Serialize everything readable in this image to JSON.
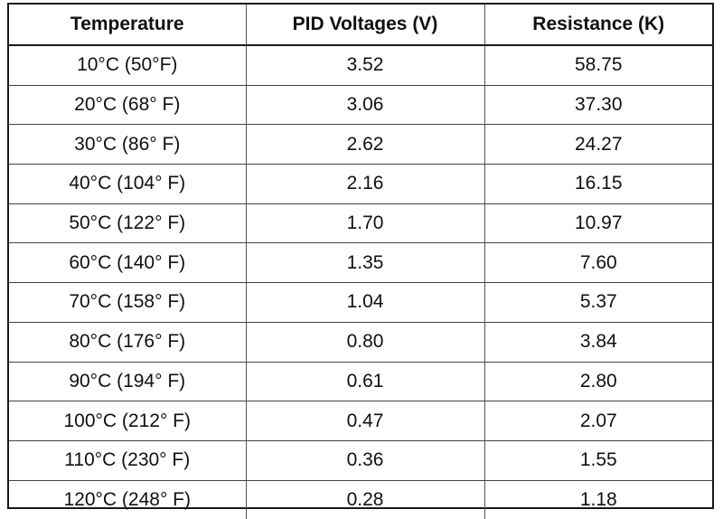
{
  "table": {
    "headers": [
      "Temperature",
      "PID Voltages (V)",
      "Resistance (K)"
    ],
    "rows": [
      [
        "10°C (50°F)",
        "3.52",
        "58.75"
      ],
      [
        "20°C (68° F)",
        "3.06",
        "37.30"
      ],
      [
        "30°C (86° F)",
        "2.62",
        "24.27"
      ],
      [
        "40°C (104° F)",
        "2.16",
        "16.15"
      ],
      [
        "50°C (122° F)",
        "1.70",
        "10.97"
      ],
      [
        "60°C (140° F)",
        "1.35",
        "7.60"
      ],
      [
        "70°C (158° F)",
        "1.04",
        "5.37"
      ],
      [
        "80°C (176° F)",
        "0.80",
        "3.84"
      ],
      [
        "90°C (194° F)",
        "0.61",
        "2.80"
      ],
      [
        "100°C (212° F)",
        "0.47",
        "2.07"
      ],
      [
        "110°C (230° F)",
        "0.36",
        "1.55"
      ],
      [
        "120°C (248° F)",
        "0.28",
        "1.18"
      ]
    ]
  }
}
